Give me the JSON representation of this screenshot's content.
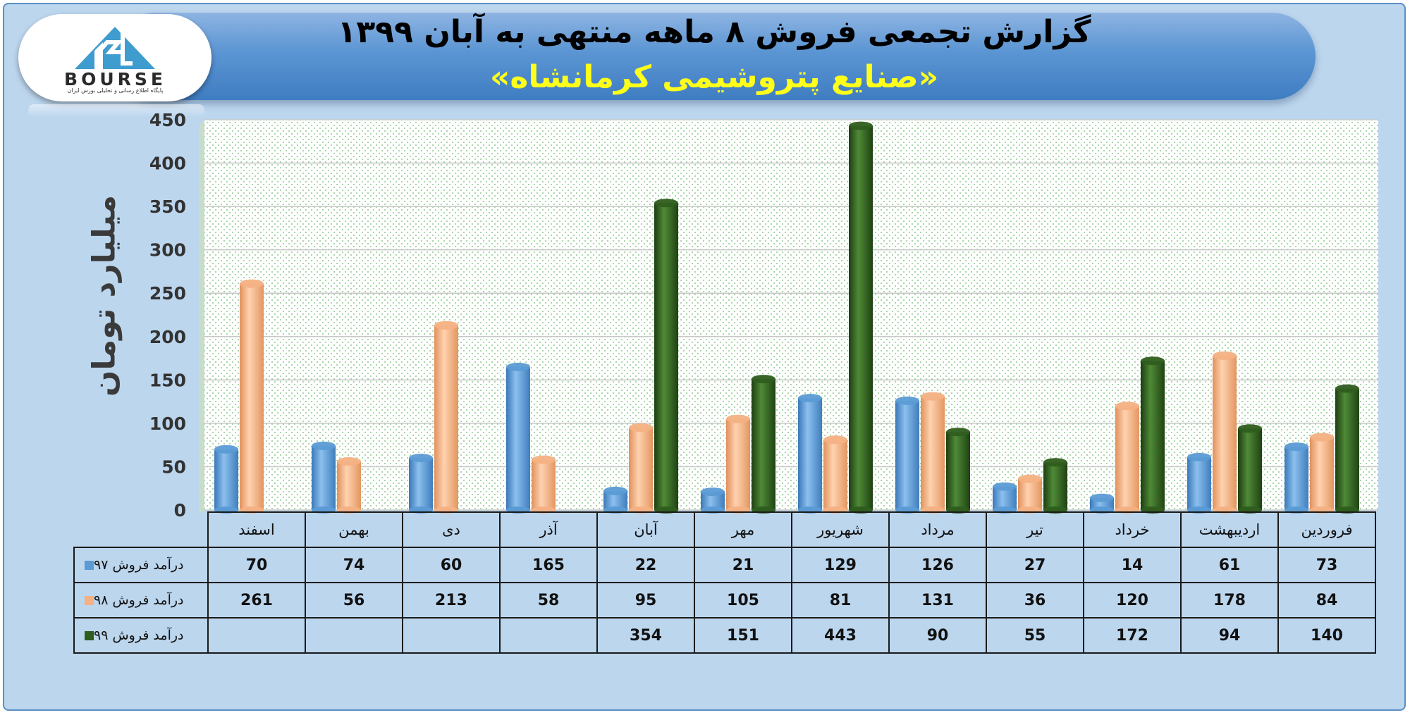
{
  "title": {
    "line1": "گزارش تجمعی فروش ۸ ماهه منتهی به آبان ۱۳۹۹",
    "line2": "«صنایع پتروشیمی کرمانشاه»"
  },
  "logo": {
    "word": "BOURSE",
    "subtitle": "پایگاه اطلاع رسانی و تحلیلی بورس ایران"
  },
  "colors": {
    "series97": "#5b9bd5",
    "series98": "#f4b183",
    "series99": "#2f5d1e",
    "title_highlight": "#ffff1a"
  },
  "chart_data": {
    "type": "bar",
    "title": "گزارش تجمعی فروش ۸ ماهه منتهی به آبان ۱۳۹۹",
    "ylabel": "میلیارد تومان",
    "xlabel": "",
    "ylim": [
      0,
      450
    ],
    "yticks": [
      0,
      50,
      100,
      150,
      200,
      250,
      300,
      350,
      400,
      450
    ],
    "categories": [
      "فروردین",
      "اردیبهشت",
      "خرداد",
      "تیر",
      "مرداد",
      "شهریور",
      "مهر",
      "آبان",
      "آذر",
      "دی",
      "بهمن",
      "اسفند"
    ],
    "series": [
      {
        "name": "درآمد فروش ۹۷",
        "values": [
          73,
          61,
          14,
          27,
          126,
          129,
          21,
          22,
          165,
          60,
          74,
          70
        ]
      },
      {
        "name": "درآمد فروش ۹۸",
        "values": [
          84,
          178,
          120,
          36,
          131,
          81,
          105,
          95,
          58,
          213,
          56,
          261
        ]
      },
      {
        "name": "درآمد فروش ۹۹",
        "values": [
          140,
          94,
          172,
          55,
          90,
          443,
          151,
          354,
          null,
          null,
          null,
          null
        ]
      }
    ],
    "grid": true,
    "legend": "data-table"
  }
}
